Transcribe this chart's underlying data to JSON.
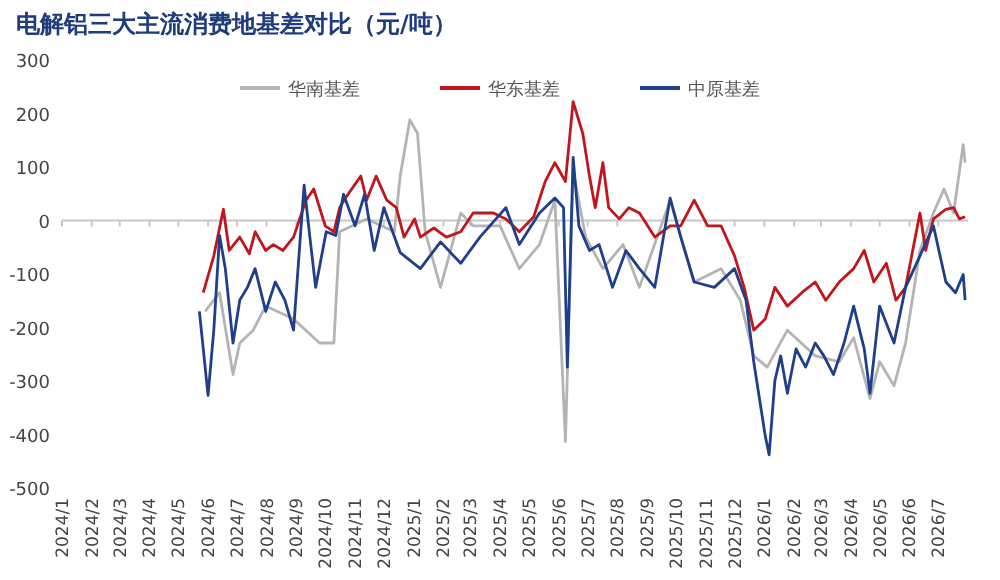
{
  "chart_data": {
    "type": "line",
    "title": "电解铝三大主流消费地基差对比（元/吨）",
    "legend": "top",
    "marker": "none",
    "line_style": "solid",
    "xlim": [
      "2024-01-01",
      "2026-08-01"
    ],
    "xticks": [
      {
        "value": "2024-01",
        "label": "2024/1"
      },
      {
        "value": "2024-02",
        "label": "2024/2"
      },
      {
        "value": "2024-03",
        "label": "2024/3"
      },
      {
        "value": "2024-04",
        "label": "2024/4"
      },
      {
        "value": "2024-05",
        "label": "2024/5"
      },
      {
        "value": "2024-06",
        "label": "2024/6"
      },
      {
        "value": "2024-07",
        "label": "2024/7"
      },
      {
        "value": "2024-08",
        "label": "2024/8"
      },
      {
        "value": "2024-09",
        "label": "2024/9"
      },
      {
        "value": "2024-10",
        "label": "2024/10"
      },
      {
        "value": "2024-11",
        "label": "2024/11"
      },
      {
        "value": "2024-12",
        "label": "2024/12"
      },
      {
        "value": "2025-01",
        "label": "2025/1"
      },
      {
        "value": "2025-02",
        "label": "2025/2"
      },
      {
        "value": "2025-03",
        "label": "2025/3"
      },
      {
        "value": "2025-04",
        "label": "2025/4"
      },
      {
        "value": "2025-05",
        "label": "2025/5"
      },
      {
        "value": "2025-06",
        "label": "2025/6"
      },
      {
        "value": "2025-07",
        "label": "2025/7"
      },
      {
        "value": "2025-08",
        "label": "2025/8"
      },
      {
        "value": "2025-09",
        "label": "2025/9"
      },
      {
        "value": "2025-10",
        "label": "2025/10"
      },
      {
        "value": "2025-11",
        "label": "2025/11"
      },
      {
        "value": "2025-12",
        "label": "2025/12"
      },
      {
        "value": "2026-01",
        "label": "2026/1"
      },
      {
        "value": "2026-02",
        "label": "2026/2"
      },
      {
        "value": "2026-03",
        "label": "2026/3"
      },
      {
        "value": "2026-04",
        "label": "2026/4"
      },
      {
        "value": "2026-05",
        "label": "2026/5"
      },
      {
        "value": "2026-06",
        "label": "2026/6"
      },
      {
        "value": "2026-07",
        "label": "2026/7"
      }
    ],
    "ylim": [
      -500,
      300
    ],
    "yticks": [
      -500,
      -400,
      -300,
      -200,
      -100,
      0,
      100,
      200,
      300
    ],
    "series": [
      {
        "name": "华南基差",
        "color": "#b4b4b4",
        "x": [
          "2024-05-29",
          "2024-06-13",
          "2024-06-27",
          "2024-07-04",
          "2024-07-18",
          "2024-07-31",
          "2024-08-29",
          "2024-09-25",
          "2024-10-10",
          "2024-10-16",
          "2024-11-13",
          "2024-12-12",
          "2024-12-18",
          "2024-12-28",
          "2025-01-05",
          "2025-01-13",
          "2025-01-29",
          "2025-02-19",
          "2025-03-04",
          "2025-04-01",
          "2025-04-21",
          "2025-05-12",
          "2025-05-28",
          "2025-06-08",
          "2025-06-16",
          "2025-06-29",
          "2025-07-17",
          "2025-08-07",
          "2025-08-24",
          "2025-09-25",
          "2025-10-20",
          "2025-11-17",
          "2025-12-07",
          "2025-12-21",
          "2026-01-04",
          "2026-01-25",
          "2026-02-23",
          "2026-03-20",
          "2026-04-04",
          "2026-04-21",
          "2026-05-01",
          "2026-05-16",
          "2026-05-28",
          "2026-06-12",
          "2026-06-26",
          "2026-07-07",
          "2026-07-17",
          "2026-07-27",
          "2026-07-29"
        ],
        "values": [
          -170,
          -135,
          -288,
          -229,
          -205,
          -160,
          -184,
          -229,
          -229,
          -21,
          3,
          -21,
          83,
          188,
          163,
          -21,
          -125,
          14,
          -10,
          -10,
          -90,
          -45,
          38,
          -413,
          94,
          -31,
          -90,
          -45,
          -125,
          38,
          -115,
          -90,
          -149,
          -253,
          -274,
          -205,
          -253,
          -264,
          -219,
          -333,
          -264,
          -309,
          -229,
          -56,
          14,
          59,
          14,
          142,
          108
        ]
      },
      {
        "name": "华东基差",
        "color": "#c0161c",
        "x": [
          "2024-05-27",
          "2024-06-07",
          "2024-06-17",
          "2024-06-23",
          "2024-07-04",
          "2024-07-14",
          "2024-07-20",
          "2024-07-31",
          "2024-08-08",
          "2024-08-18",
          "2024-08-29",
          "2024-09-11",
          "2024-09-19",
          "2024-10-01",
          "2024-10-10",
          "2024-10-16",
          "2024-10-22",
          "2024-11-07",
          "2024-11-13",
          "2024-11-23",
          "2024-12-04",
          "2024-12-14",
          "2024-12-22",
          "2025-01-02",
          "2025-01-08",
          "2025-01-22",
          "2025-02-04",
          "2025-02-19",
          "2025-03-04",
          "2025-03-25",
          "2025-04-07",
          "2025-04-21",
          "2025-05-06",
          "2025-05-18",
          "2025-05-28",
          "2025-06-08",
          "2025-06-16",
          "2025-06-26",
          "2025-07-03",
          "2025-07-09",
          "2025-07-17",
          "2025-07-23",
          "2025-08-03",
          "2025-08-13",
          "2025-08-24",
          "2025-09-09",
          "2025-09-25",
          "2025-10-06",
          "2025-10-20",
          "2025-11-03",
          "2025-11-17",
          "2025-12-01",
          "2025-12-11",
          "2025-12-21",
          "2026-01-02",
          "2026-01-12",
          "2026-01-25",
          "2026-02-09",
          "2026-02-23",
          "2026-03-06",
          "2026-03-20",
          "2026-04-04",
          "2026-04-15",
          "2026-04-25",
          "2026-05-08",
          "2026-05-18",
          "2026-05-28",
          "2026-06-12",
          "2026-06-18",
          "2026-06-26",
          "2026-07-09",
          "2026-07-17",
          "2026-07-23",
          "2026-07-29"
        ],
        "values": [
          -135,
          -66,
          21,
          -56,
          -31,
          -62,
          -21,
          -56,
          -45,
          -56,
          -31,
          38,
          59,
          -10,
          -21,
          24,
          42,
          83,
          38,
          83,
          38,
          24,
          -31,
          3,
          -31,
          -14,
          -31,
          -21,
          14,
          14,
          3,
          -21,
          7,
          73,
          108,
          73,
          222,
          163,
          83,
          24,
          108,
          24,
          3,
          24,
          14,
          -31,
          -10,
          -10,
          38,
          -10,
          -10,
          -66,
          -125,
          -205,
          -184,
          -125,
          -160,
          -135,
          -115,
          -149,
          -115,
          -90,
          -56,
          -115,
          -80,
          -149,
          -125,
          14,
          -56,
          3,
          21,
          24,
          3,
          7
        ]
      },
      {
        "name": "中原基差",
        "color": "#1f3f8a",
        "x": [
          "2024-05-23",
          "2024-06-01",
          "2024-06-07",
          "2024-06-13",
          "2024-06-19",
          "2024-06-27",
          "2024-07-04",
          "2024-07-12",
          "2024-07-20",
          "2024-07-31",
          "2024-08-10",
          "2024-08-20",
          "2024-08-29",
          "2024-09-09",
          "2024-09-15",
          "2024-09-21",
          "2024-10-02",
          "2024-10-12",
          "2024-10-20",
          "2024-11-01",
          "2024-11-11",
          "2024-11-21",
          "2024-12-01",
          "2024-12-18",
          "2025-01-08",
          "2025-01-29",
          "2025-02-19",
          "2025-03-11",
          "2025-04-07",
          "2025-04-21",
          "2025-05-12",
          "2025-05-28",
          "2025-06-06",
          "2025-06-10",
          "2025-06-16",
          "2025-06-22",
          "2025-07-03",
          "2025-07-13",
          "2025-07-27",
          "2025-08-10",
          "2025-08-24",
          "2025-09-09",
          "2025-09-25",
          "2025-10-06",
          "2025-10-20",
          "2025-11-10",
          "2025-12-01",
          "2025-12-13",
          "2025-12-21",
          "2026-01-02",
          "2026-01-06",
          "2026-01-12",
          "2026-01-18",
          "2026-01-25",
          "2026-02-03",
          "2026-02-13",
          "2026-02-23",
          "2026-03-04",
          "2026-03-14",
          "2026-03-25",
          "2026-04-04",
          "2026-04-15",
          "2026-04-21",
          "2026-05-01",
          "2026-05-16",
          "2026-05-28",
          "2026-06-12",
          "2026-06-26",
          "2026-07-09",
          "2026-07-19",
          "2026-07-27",
          "2026-07-29"
        ],
        "values": [
          -170,
          -327,
          -205,
          -28,
          -90,
          -229,
          -149,
          -125,
          -90,
          -170,
          -115,
          -149,
          -205,
          66,
          -31,
          -125,
          -21,
          -28,
          49,
          -10,
          49,
          -56,
          24,
          -60,
          -90,
          -40,
          -80,
          -31,
          24,
          -45,
          14,
          42,
          24,
          -274,
          118,
          -10,
          -56,
          -45,
          -125,
          -56,
          -90,
          -125,
          42,
          -31,
          -115,
          -125,
          -90,
          -149,
          -264,
          -403,
          -438,
          -299,
          -253,
          -323,
          -240,
          -274,
          -229,
          -253,
          -288,
          -229,
          -160,
          -240,
          -323,
          -160,
          -229,
          -125,
          -66,
          -10,
          -115,
          -135,
          -101,
          -149
        ]
      }
    ]
  }
}
